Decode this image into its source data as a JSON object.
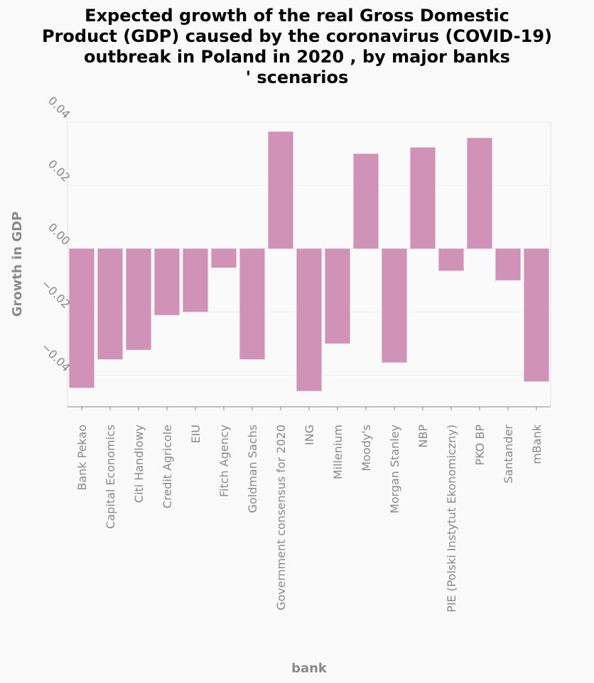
{
  "chart_data": {
    "type": "bar",
    "title_lines": [
      "Expected growth of the real Gross Domestic",
      "Product (GDP) caused by the coronavirus (COVID-19)",
      "outbreak in Poland in 2020 , by major banks",
      "' scenarios"
    ],
    "xlabel": "bank",
    "ylabel": "Growth in GDP",
    "ylim": [
      -0.05,
      0.04
    ],
    "yticks": [
      "0.04",
      "0.02",
      "0.00",
      "−0.02",
      "−0.04"
    ],
    "ytick_values": [
      0.04,
      0.02,
      0.0,
      -0.02,
      -0.04
    ],
    "categories": [
      "Bank Pekao",
      "Capital Economics",
      "Citi Handlowy",
      "Credit Agricole",
      "EIU",
      "Fitch Agency",
      "Goldman Sachs",
      "Government consensus for 2020",
      "ING",
      "Millenium",
      "Moody's",
      "Morgan Stanley",
      "NBP",
      "PIE (Polski Instytut Ekonomiczny)",
      "PKO BP",
      "Santander",
      "mBank"
    ],
    "values": [
      -0.044,
      -0.035,
      -0.032,
      -0.021,
      -0.02,
      -0.006,
      -0.035,
      0.037,
      -0.045,
      -0.03,
      0.03,
      -0.036,
      0.032,
      -0.007,
      0.035,
      -0.01,
      -0.042
    ],
    "bar_color": "#d192b8",
    "grid": true
  }
}
